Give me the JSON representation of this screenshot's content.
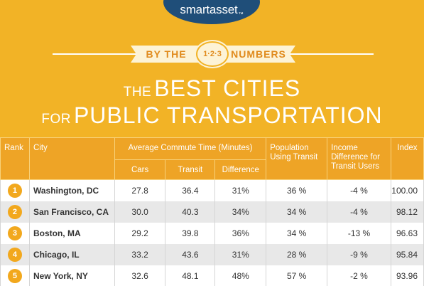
{
  "brand": {
    "name": "smartasset",
    "mark": "™"
  },
  "banner": {
    "left": "BY THE",
    "middle": "1·2·3",
    "right": "NUMBERS"
  },
  "title": {
    "line1_small": "THE",
    "line1_big": "BEST CITIES",
    "line2_small": "FOR",
    "line2_big": "PUBLIC TRANSPORTATION"
  },
  "colors": {
    "background": "#f2b326",
    "header": "#eea426",
    "brand": "#1f4e79",
    "rank": "#f2a81d"
  },
  "table": {
    "headers": {
      "rank": "Rank",
      "city": "City",
      "commute": "Average Commute Time (Minutes)",
      "cars": "Cars",
      "transit": "Transit",
      "difference": "Difference",
      "population": "Population Using Transit",
      "income": "Income Difference for Transit Users",
      "index": "Index"
    },
    "rows": [
      {
        "rank": "1",
        "city": "Washington, DC",
        "cars": "27.8",
        "transit": "36.4",
        "difference": "31%",
        "population": "36 %",
        "income": "-4 %",
        "index": "100.00"
      },
      {
        "rank": "2",
        "city": "San Francisco, CA",
        "cars": "30.0",
        "transit": "40.3",
        "difference": "34%",
        "population": "34 %",
        "income": "-4 %",
        "index": "98.12"
      },
      {
        "rank": "3",
        "city": "Boston, MA",
        "cars": "29.2",
        "transit": "39.8",
        "difference": "36%",
        "population": "34 %",
        "income": "-13 %",
        "index": "96.63"
      },
      {
        "rank": "4",
        "city": "Chicago, IL",
        "cars": "33.2",
        "transit": "43.6",
        "difference": "31%",
        "population": "28 %",
        "income": "-9 %",
        "index": "95.84"
      },
      {
        "rank": "5",
        "city": "New York, NY",
        "cars": "32.6",
        "transit": "48.1",
        "difference": "48%",
        "population": "57 %",
        "income": "-2 %",
        "index": "93.96"
      }
    ]
  }
}
